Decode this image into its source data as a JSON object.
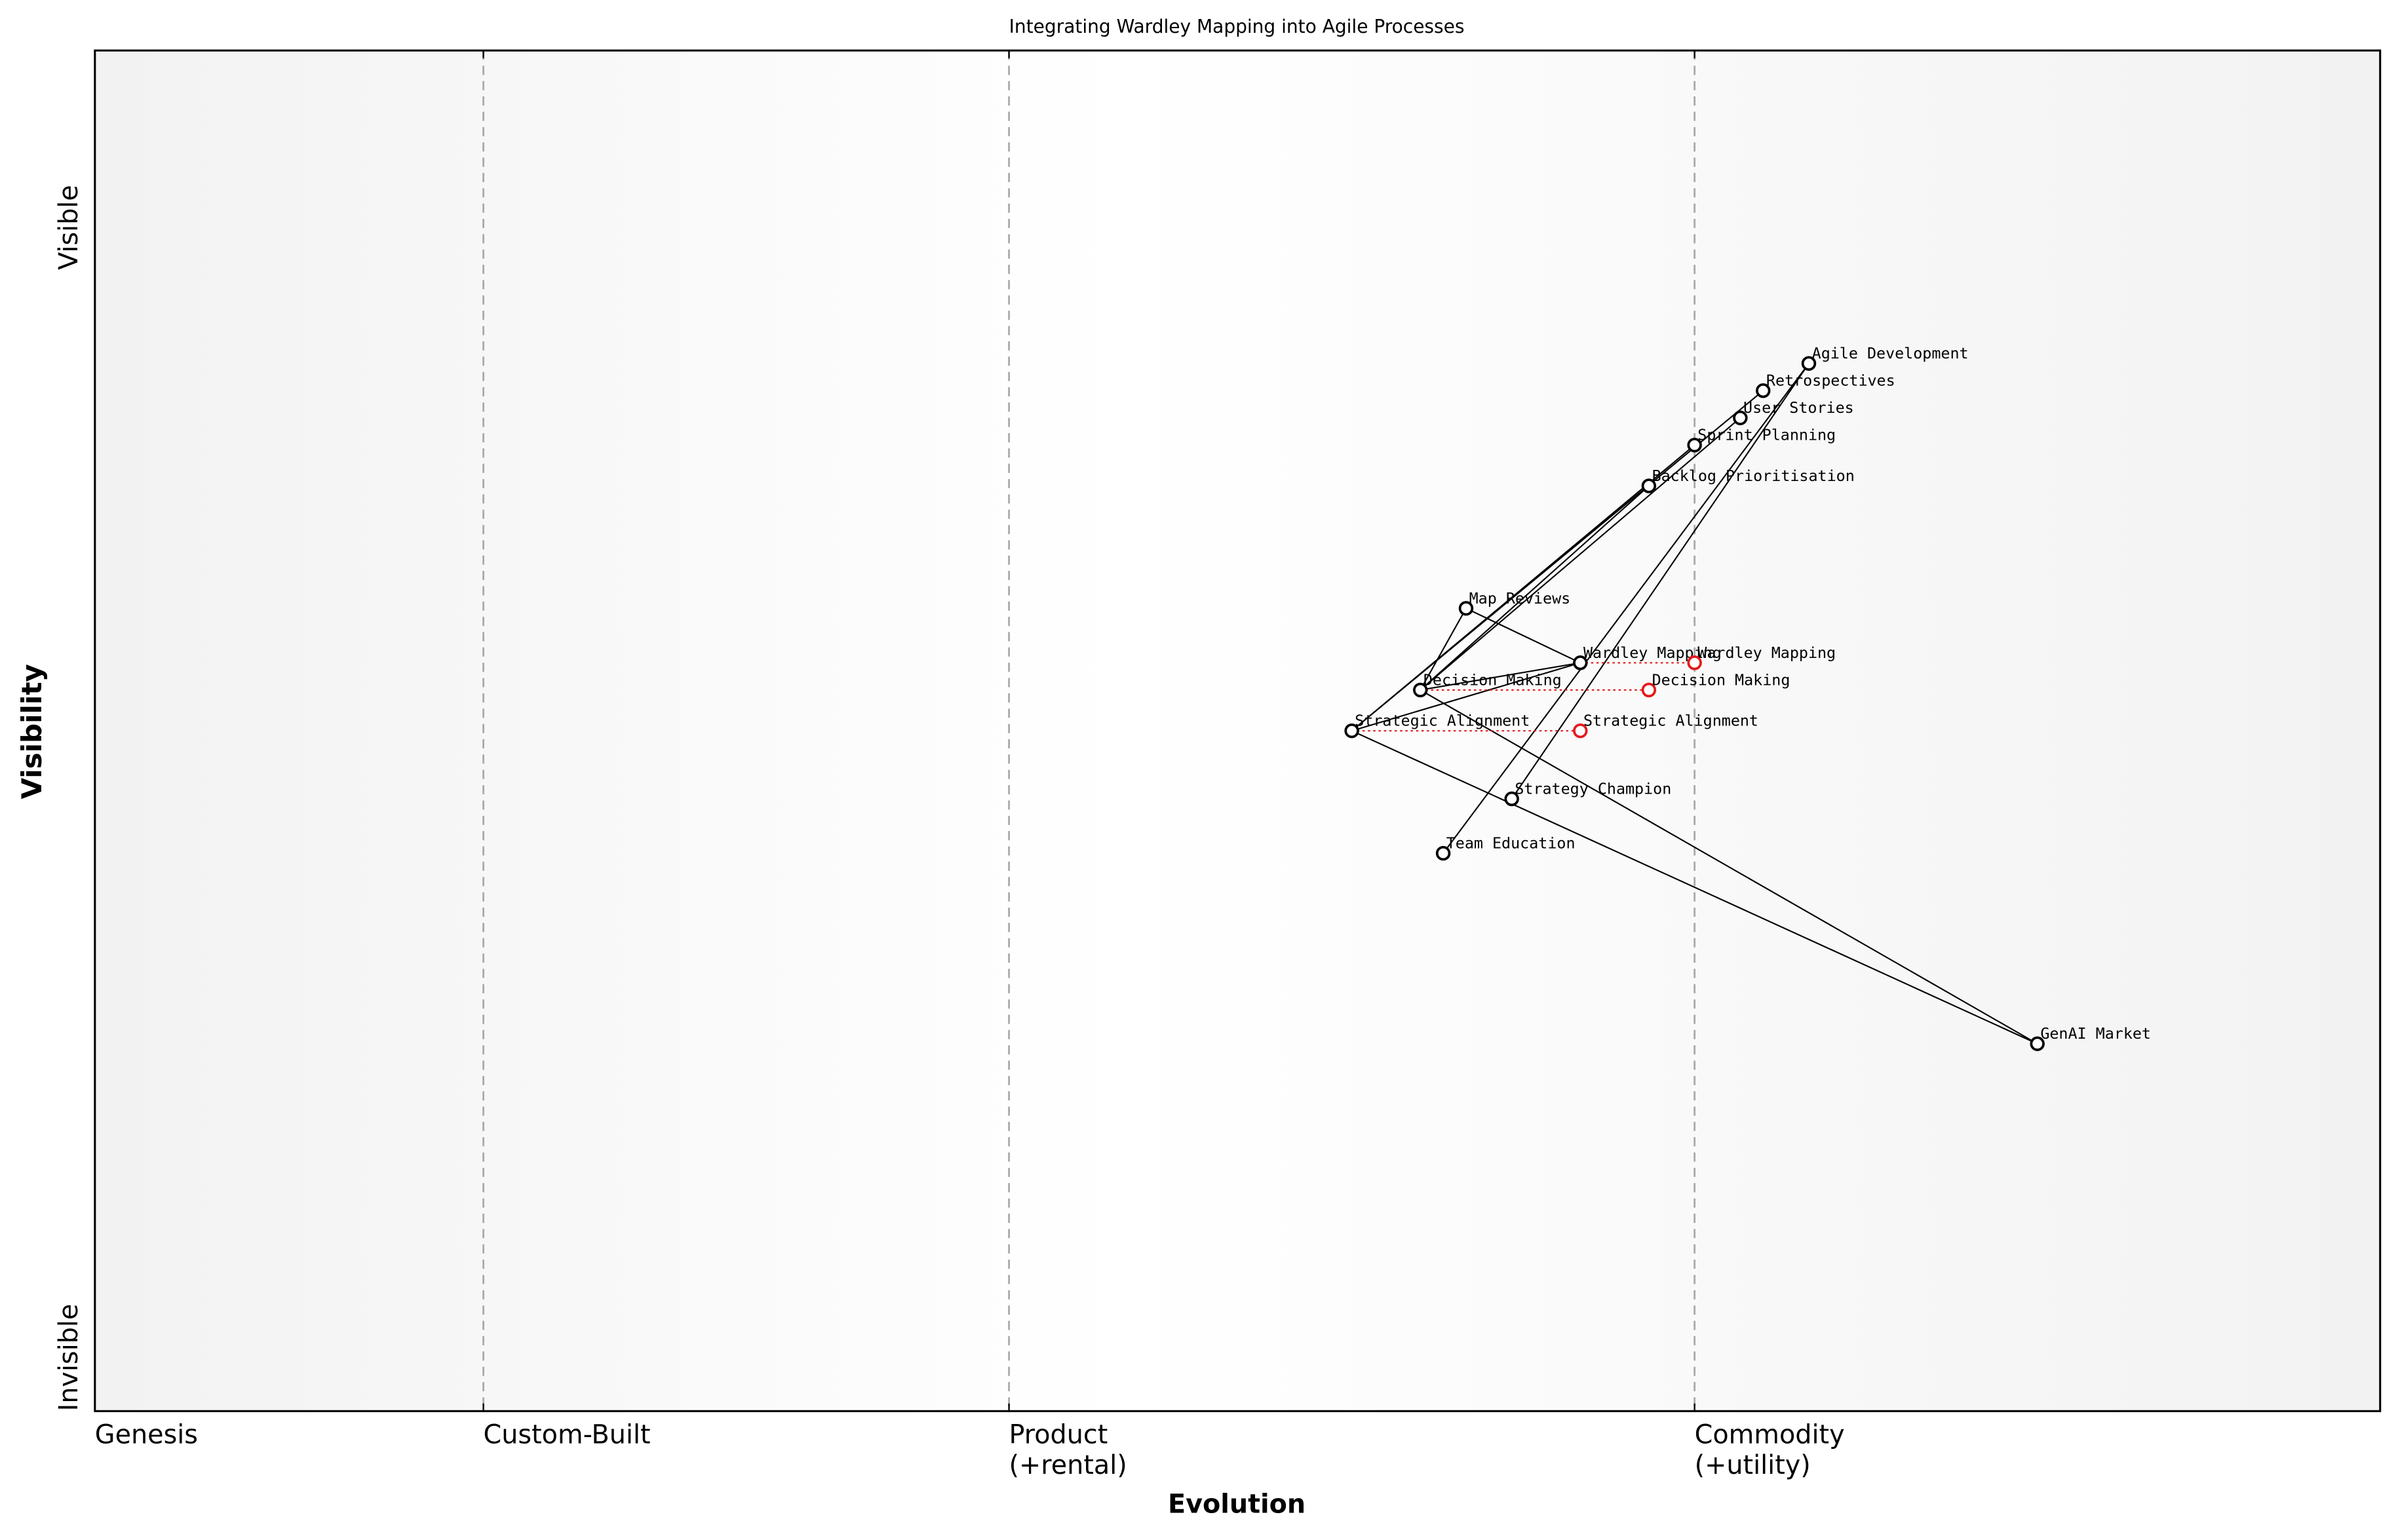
{
  "chart_data": {
    "type": "wardley",
    "title": "Integrating Wardley Mapping into Agile Processes",
    "x_label": "Evolution",
    "y_label": "Visibility",
    "xlim": [
      0,
      1
    ],
    "ylim": [
      0,
      1
    ],
    "xticks": [
      {
        "value": 0,
        "label": "Genesis"
      },
      {
        "value": 0.17,
        "label": "Custom-Built"
      },
      {
        "value": 0.4,
        "label": "Product\n(+rental)"
      },
      {
        "value": 0.7,
        "label": "Commodity\n(+utility)"
      }
    ],
    "yticks": [
      {
        "value": 0,
        "label": "Invisible"
      },
      {
        "value": 0.87,
        "label": "Visible"
      }
    ],
    "color": "#000000",
    "evolve_color": "#e31a1c",
    "components": [
      {
        "name": "Agile Development",
        "evolution": 0.75,
        "visibility": 0.77
      },
      {
        "name": "Retrospectives",
        "evolution": 0.73,
        "visibility": 0.75
      },
      {
        "name": "User Stories",
        "evolution": 0.72,
        "visibility": 0.73
      },
      {
        "name": "Sprint Planning",
        "evolution": 0.7,
        "visibility": 0.71
      },
      {
        "name": "Backlog Prioritisation",
        "evolution": 0.68,
        "visibility": 0.68
      },
      {
        "name": "Map Reviews",
        "evolution": 0.6,
        "visibility": 0.59
      },
      {
        "name": "Wardley Mapping",
        "evolution": 0.65,
        "visibility": 0.55
      },
      {
        "name": "Decision Making",
        "evolution": 0.58,
        "visibility": 0.53
      },
      {
        "name": "Strategic Alignment",
        "evolution": 0.55,
        "visibility": 0.5
      },
      {
        "name": "Strategy Champion",
        "evolution": 0.62,
        "visibility": 0.45
      },
      {
        "name": "Team Education",
        "evolution": 0.59,
        "visibility": 0.41
      },
      {
        "name": "GenAI Market",
        "evolution": 0.85,
        "visibility": 0.27
      }
    ],
    "evolved": [
      {
        "name": "Wardley Mapping",
        "evolution": 0.7,
        "visibility": 0.55
      },
      {
        "name": "Decision Making",
        "evolution": 0.68,
        "visibility": 0.53
      },
      {
        "name": "Strategic Alignment",
        "evolution": 0.65,
        "visibility": 0.5
      }
    ],
    "links": [
      [
        "Agile Development",
        "Team Education"
      ],
      [
        "Agile Development",
        "Strategy Champion"
      ],
      [
        "Retrospectives",
        "Strategic Alignment"
      ],
      [
        "User Stories",
        "Decision Making"
      ],
      [
        "Sprint Planning",
        "Strategic Alignment"
      ],
      [
        "Backlog Prioritisation",
        "Decision Making"
      ],
      [
        "Map Reviews",
        "Wardley Mapping"
      ],
      [
        "Map Reviews",
        "Decision Making"
      ],
      [
        "Wardley Mapping",
        "Decision Making"
      ],
      [
        "Wardley Mapping",
        "Strategic Alignment"
      ],
      [
        "Strategic Alignment",
        "GenAI Market"
      ],
      [
        "Decision Making",
        "GenAI Market"
      ]
    ]
  }
}
